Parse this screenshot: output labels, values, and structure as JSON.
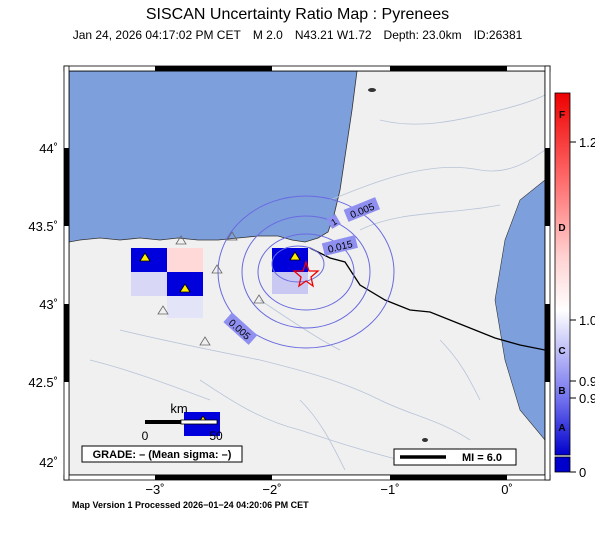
{
  "title": "SISCAN Uncertainty Ratio Map : Pyrenees",
  "subtitle": {
    "datetime": "Jan 24, 2026 04:17:02 PM CET",
    "magnitude": "M 2.0",
    "location": "N43.21 W1.72",
    "depth": "Depth: 23.0km",
    "id": "ID:26381"
  },
  "axes": {
    "lat_labels": [
      "44˚",
      "43.5˚",
      "43˚",
      "42.5˚",
      "42˚"
    ],
    "lon_labels": [
      "−3˚",
      "−2˚",
      "−1˚",
      "0˚"
    ]
  },
  "contours": {
    "labels": [
      "0.005",
      "0.015",
      "0.005",
      "1"
    ]
  },
  "scale": {
    "unit": "km",
    "start": "0",
    "end": "50"
  },
  "grade_box": "GRADE: – (Mean sigma: –)",
  "mi_legend": "MI = 6.0",
  "colorbar": {
    "letters": [
      "F",
      "D",
      "C",
      "B",
      "A"
    ],
    "values": [
      "1.2",
      "1.0",
      "0.9",
      "0.9",
      "0"
    ]
  },
  "footer": "Map Version 1 Processed 2026−01−24 04:20:06 PM CET",
  "colors": {
    "sea": "#7d9fdc",
    "land": "#f0f0f0",
    "cell_blue": "#0000dd",
    "epicenter": "#ee0000",
    "contour": "#6a6ae0"
  },
  "stations": {
    "count": 10,
    "symbol": "triangle"
  },
  "epicenter": {
    "lat": 43.21,
    "lon": -1.72,
    "symbol": "star"
  }
}
